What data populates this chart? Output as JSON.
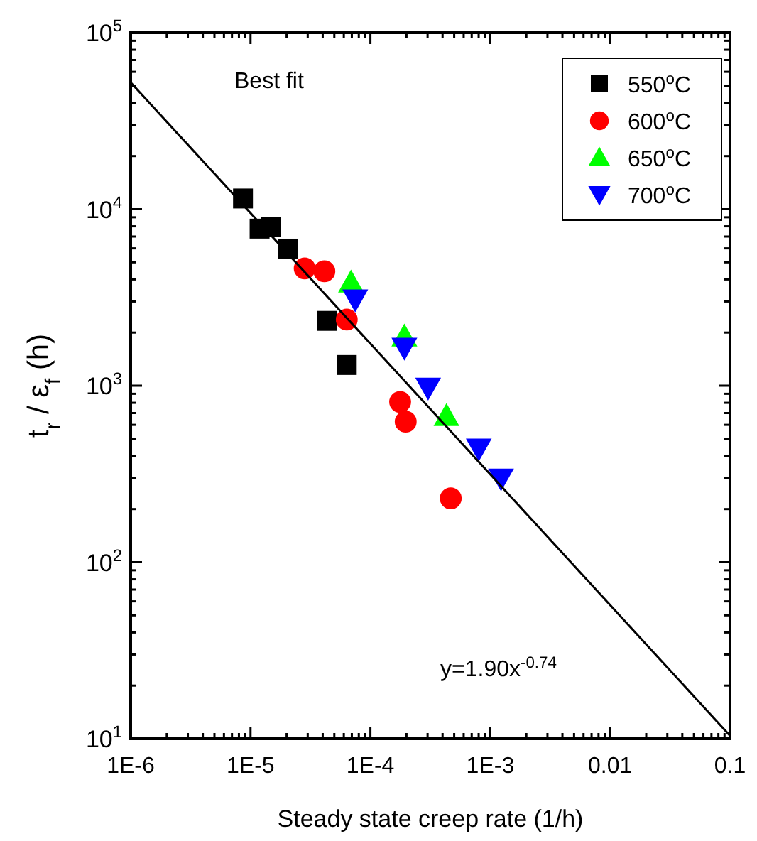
{
  "chart_data": {
    "type": "scatter",
    "xlabel": "Steady state creep rate (1/h)",
    "ylabel": "t$_{r}$ / ε$_{f}$ (h)",
    "log": "xy",
    "grid": false,
    "legend": "top right",
    "xlim": [
      1e-06,
      0.1
    ],
    "ylim": [
      10,
      100000
    ],
    "xticks": [
      {
        "value": 1e-06,
        "label": "1E-6"
      },
      {
        "value": 2e-06,
        "label": null
      },
      {
        "value": 3e-06,
        "label": null
      },
      {
        "value": 4e-06,
        "label": null
      },
      {
        "value": 5e-06,
        "label": null
      },
      {
        "value": 6e-06,
        "label": null
      },
      {
        "value": 7e-06,
        "label": null
      },
      {
        "value": 8e-06,
        "label": null
      },
      {
        "value": 9e-06,
        "label": null
      },
      {
        "value": 1e-05,
        "label": "1E-5"
      },
      {
        "value": 2e-05,
        "label": null
      },
      {
        "value": 3e-05,
        "label": null
      },
      {
        "value": 4e-05,
        "label": null
      },
      {
        "value": 5e-05,
        "label": null
      },
      {
        "value": 6e-05,
        "label": null
      },
      {
        "value": 7e-05,
        "label": null
      },
      {
        "value": 8e-05,
        "label": null
      },
      {
        "value": 9e-05,
        "label": null
      },
      {
        "value": 0.0001,
        "label": "1E-4"
      },
      {
        "value": 0.0002,
        "label": null
      },
      {
        "value": 0.0003,
        "label": null
      },
      {
        "value": 0.0004,
        "label": null
      },
      {
        "value": 0.0005,
        "label": null
      },
      {
        "value": 0.0006,
        "label": null
      },
      {
        "value": 0.0007,
        "label": null
      },
      {
        "value": 0.0008,
        "label": null
      },
      {
        "value": 0.0009,
        "label": null
      },
      {
        "value": 0.001,
        "label": "1E-3"
      },
      {
        "value": 0.002,
        "label": null
      },
      {
        "value": 0.003,
        "label": null
      },
      {
        "value": 0.004,
        "label": null
      },
      {
        "value": 0.005,
        "label": null
      },
      {
        "value": 0.006,
        "label": null
      },
      {
        "value": 0.007,
        "label": null
      },
      {
        "value": 0.008,
        "label": null
      },
      {
        "value": 0.009,
        "label": null
      },
      0.01,
      {
        "value": 0.02,
        "label": null
      },
      {
        "value": 0.03,
        "label": null
      },
      {
        "value": 0.04,
        "label": null
      },
      {
        "value": 0.05,
        "label": null
      },
      {
        "value": 0.06,
        "label": null
      },
      {
        "value": 0.07,
        "label": null
      },
      {
        "value": 0.08,
        "label": null
      },
      {
        "value": 0.09,
        "label": null
      },
      0.1
    ],
    "yticks": [
      {
        "value": 10,
        "label": "10$^{1}$"
      },
      {
        "value": 20,
        "label": null
      },
      {
        "value": 30,
        "label": null
      },
      {
        "value": 40,
        "label": null
      },
      {
        "value": 50,
        "label": null
      },
      {
        "value": 60,
        "label": null
      },
      {
        "value": 70,
        "label": null
      },
      {
        "value": 80,
        "label": null
      },
      {
        "value": 90,
        "label": null
      },
      {
        "value": 100,
        "label": "10$^{2}$"
      },
      {
        "value": 200,
        "label": null
      },
      {
        "value": 300,
        "label": null
      },
      {
        "value": 400,
        "label": null
      },
      {
        "value": 500,
        "label": null
      },
      {
        "value": 600,
        "label": null
      },
      {
        "value": 700,
        "label": null
      },
      {
        "value": 800,
        "label": null
      },
      {
        "value": 900,
        "label": null
      },
      {
        "value": 1000,
        "label": "10$^{3}$"
      },
      {
        "value": 2000,
        "label": null
      },
      {
        "value": 3000,
        "label": null
      },
      {
        "value": 4000,
        "label": null
      },
      {
        "value": 5000,
        "label": null
      },
      {
        "value": 6000,
        "label": null
      },
      {
        "value": 7000,
        "label": null
      },
      {
        "value": 8000,
        "label": null
      },
      {
        "value": 9000,
        "label": null
      },
      {
        "value": 10000,
        "label": "10$^{4}$"
      },
      {
        "value": 20000,
        "label": null
      },
      {
        "value": 30000,
        "label": null
      },
      {
        "value": 40000,
        "label": null
      },
      {
        "value": 50000,
        "label": null
      },
      {
        "value": 60000,
        "label": null
      },
      {
        "value": 70000,
        "label": null
      },
      {
        "value": 80000,
        "label": null
      },
      {
        "value": 90000,
        "label": null
      },
      {
        "value": 100000,
        "label": "10$^{5}$"
      }
    ],
    "annotations": [
      "Best fit",
      "y=1.90x$^{-0.74}$"
    ],
    "series": [
      {
        "name": "550$^{o}$C",
        "color": "#000000",
        "marker": "square",
        "x": [
          8.65e-06,
          1.19e-05,
          1.48e-05,
          2.05e-05,
          4.35e-05,
          6.35e-05
        ],
        "values": [
          11500,
          7760,
          7900,
          5980,
          2330,
          1310
        ]
      },
      {
        "name": "600$^{o}$C",
        "color": "#ff0000",
        "marker": "circle",
        "x": [
          2.83e-05,
          4.13e-05,
          6.35e-05,
          0.000177,
          0.000197,
          0.000468
        ],
        "values": [
          4620,
          4450,
          2370,
          809,
          625,
          230
        ]
      },
      {
        "name": "650$^{o}$C",
        "color": "#00ff00",
        "marker": "triangle",
        "x": [
          6.89e-05,
          0.000192,
          0.000431
        ],
        "values": [
          3840,
          1900,
          673
        ]
      },
      {
        "name": "700$^{o}$C",
        "color": "#0000ff",
        "marker": "triangle-down",
        "x": [
          7.47e-05,
          0.000192,
          0.000303,
          0.000802,
          0.00123
        ],
        "values": [
          3080,
          1640,
          975,
          440,
          298
        ]
      },
      {
        "type": "line",
        "color": "#000000",
        "line_style": "solid",
        "marker": "none",
        "x": [
          1e-06,
          0.1
        ],
        "values": [
          52300,
          10.4
        ]
      }
    ]
  }
}
